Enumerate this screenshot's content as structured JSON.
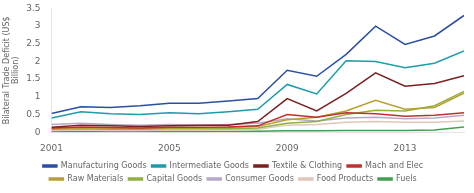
{
  "chart_data": {
    "type": "line",
    "x": [
      2001,
      2002,
      2003,
      2004,
      2005,
      2006,
      2007,
      2008,
      2009,
      2010,
      2011,
      2012,
      2013,
      2014,
      2015
    ],
    "series": [
      {
        "name": "Manufacturing Goods",
        "color": "#2b4fa0",
        "values": [
          0.53,
          0.72,
          0.7,
          0.75,
          0.82,
          0.82,
          0.88,
          0.95,
          1.75,
          1.58,
          2.2,
          3.0,
          2.48,
          2.72,
          3.3
        ]
      },
      {
        "name": "Intermediate Goods",
        "color": "#1e9ca8",
        "values": [
          0.4,
          0.58,
          0.52,
          0.5,
          0.55,
          0.52,
          0.58,
          0.65,
          1.35,
          1.08,
          2.02,
          2.0,
          1.82,
          1.95,
          2.3
        ]
      },
      {
        "name": "Textile & Clothing",
        "color": "#7b2020",
        "values": [
          0.14,
          0.2,
          0.18,
          0.16,
          0.18,
          0.2,
          0.2,
          0.3,
          0.95,
          0.6,
          1.1,
          1.68,
          1.3,
          1.38,
          1.6
        ]
      },
      {
        "name": "Mach and Elec",
        "color": "#c03030",
        "values": [
          0.12,
          0.15,
          0.13,
          0.12,
          0.14,
          0.14,
          0.15,
          0.18,
          0.5,
          0.42,
          0.55,
          0.52,
          0.45,
          0.48,
          0.55
        ]
      },
      {
        "name": "Raw Materials",
        "color": "#b8a030",
        "values": [
          0.1,
          0.12,
          0.1,
          0.1,
          0.12,
          0.12,
          0.14,
          0.16,
          0.35,
          0.42,
          0.6,
          0.9,
          0.65,
          0.7,
          1.1
        ]
      },
      {
        "name": "Capital Goods",
        "color": "#90b040",
        "values": [
          0.08,
          0.1,
          0.08,
          0.08,
          0.1,
          0.1,
          0.1,
          0.12,
          0.25,
          0.3,
          0.5,
          0.62,
          0.6,
          0.75,
          1.15
        ]
      },
      {
        "name": "Consumer Goods",
        "color": "#b8a8c8",
        "values": [
          0.22,
          0.25,
          0.22,
          0.2,
          0.22,
          0.2,
          0.22,
          0.25,
          0.38,
          0.32,
          0.4,
          0.42,
          0.38,
          0.4,
          0.48
        ]
      },
      {
        "name": "Food Products",
        "color": "#e0c8b8",
        "values": [
          0.05,
          0.06,
          0.05,
          0.05,
          0.06,
          0.06,
          0.07,
          0.08,
          0.2,
          0.22,
          0.28,
          0.3,
          0.28,
          0.28,
          0.32
        ]
      },
      {
        "name": "Fuels",
        "color": "#40a050",
        "values": [
          0.02,
          0.02,
          0.02,
          0.02,
          0.02,
          0.02,
          0.02,
          0.03,
          0.04,
          0.04,
          0.05,
          0.05,
          0.05,
          0.06,
          0.15
        ]
      }
    ],
    "ylabel": "Bilateral Trade Deficit (US$\nBillion)",
    "xlim": [
      2001,
      2015
    ],
    "xticks": [
      2001,
      2005,
      2009,
      2013
    ],
    "ylim": [
      0,
      3.5
    ],
    "yticks": [
      0,
      0.5,
      1,
      1.5,
      2,
      2.5,
      3,
      3.5
    ],
    "grid": false,
    "legend": "bottom"
  }
}
